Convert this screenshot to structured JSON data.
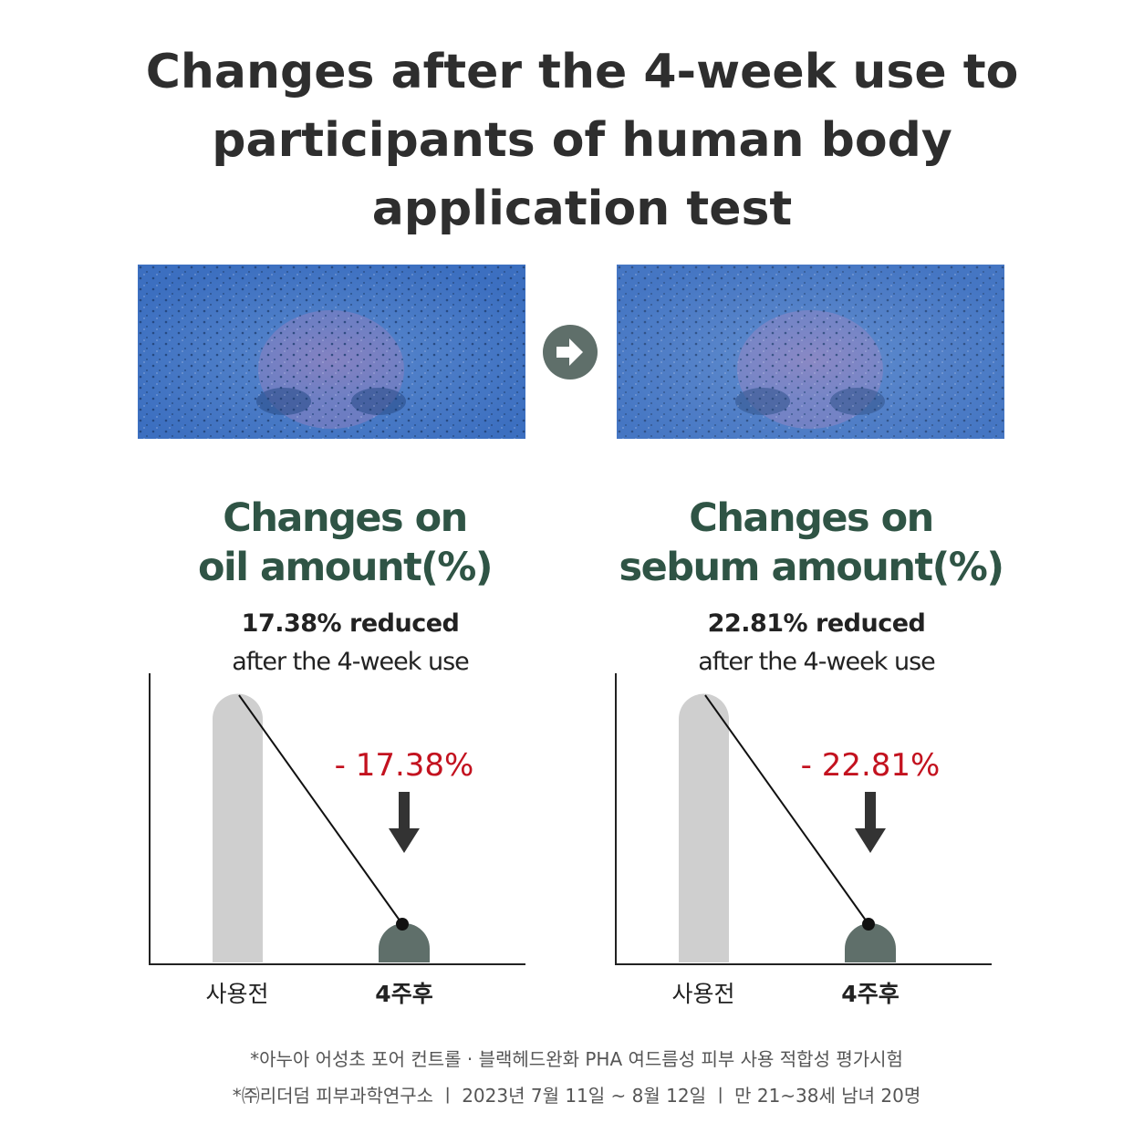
{
  "header": {
    "title_lines": [
      "Changes after the 4-week use to",
      "participants of human body",
      "application test"
    ]
  },
  "panels": [
    {
      "heading_lines": [
        "Changes on",
        "oil amount(%)"
      ],
      "summary": "17.38% reduced",
      "note": "after the 4-week use",
      "change": "- 17.38%",
      "before_label": "사용전",
      "after_label": "4주후"
    },
    {
      "heading_lines": [
        "Changes on",
        "sebum amount(%)"
      ],
      "summary": "22.81% reduced",
      "note": "after the 4-week use",
      "change": "- 22.81%",
      "before_label": "사용전",
      "after_label": "4주후"
    }
  ],
  "footnotes": [
    "*아누아 어성초 포어 컨트롤 · 블랙헤드완화 PHA 여드름성 피부 사용 적합성 평가시험",
    "*㈜리더덤 피부과학연구소 ㅣ 2023년 7월 11일 ~ 8월 12일 ㅣ 만 21~38세 남녀 20명"
  ]
}
